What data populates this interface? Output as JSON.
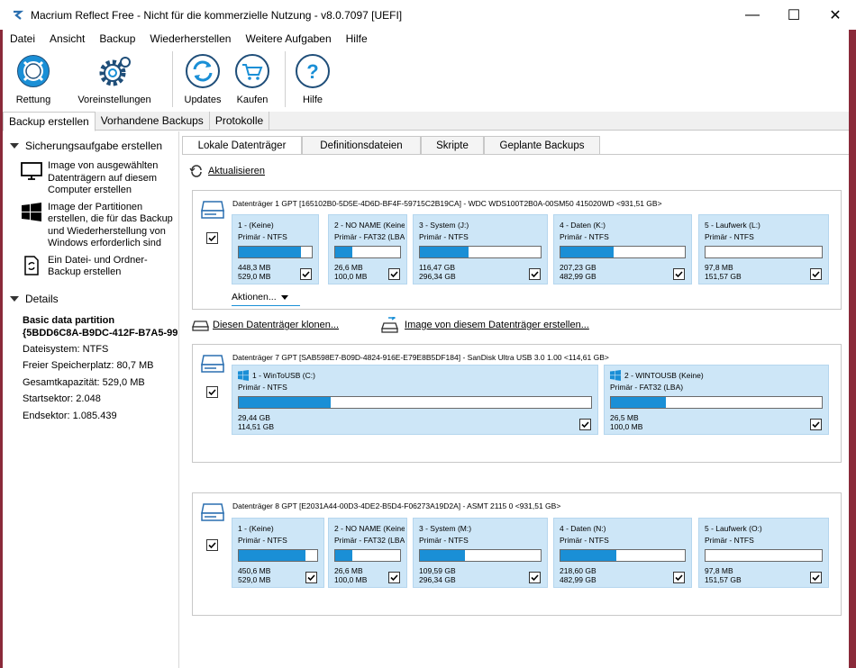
{
  "window": {
    "title": "Macrium Reflect Free - Nicht für die kommerzielle Nutzung - v8.0.7097  [UEFI]",
    "minimize": "—",
    "maximize": "☐",
    "close": "✕"
  },
  "menu": [
    "Datei",
    "Ansicht",
    "Backup",
    "Wiederherstellen",
    "Weitere Aufgaben",
    "Hilfe"
  ],
  "toolbar": {
    "rettung": "Rettung",
    "voreinstellungen": "Voreinstellungen",
    "updates": "Updates",
    "kaufen": "Kaufen",
    "hilfe": "Hilfe"
  },
  "main_tabs": [
    "Backup erstellen",
    "Vorhandene Backups",
    "Protokolle"
  ],
  "left_pane": {
    "section_tasks": "Sicherungsaufgabe erstellen",
    "task1": "Image von ausgewählten Datenträgern auf diesem Computer erstellen",
    "task2": "Image der Partitionen erstellen, die für das Backup und Wiederherstellung von Windows erforderlich sind",
    "task3": "Ein Datei- und Ordner-Backup erstellen",
    "section_details": "Details",
    "details_title1": "Basic data partition",
    "details_title2": "{5BDD6C8A-B9DC-412F-B7A5-99",
    "filesystem": "Dateisystem: NTFS",
    "free": "Freier Speicherplatz: 80,7 MB",
    "total": "Gesamtkapazität: 529,0 MB",
    "start": "Startsektor: 2.048",
    "end": "Endsektor: 1.085.439"
  },
  "sub_tabs": [
    "Lokale Datenträger",
    "Definitionsdateien",
    "Skripte",
    "Geplante Backups"
  ],
  "refresh_label": "Aktualisieren",
  "clone_label": "Diesen Datenträger klonen...",
  "image_label": "Image von diesem Datenträger erstellen...",
  "actions_label": "Aktionen...",
  "disks": [
    {
      "title": "Datenträger 1 GPT [165102B0-5D5E-4D6D-BF4F-59715C2B19CA] - WDC  WDS100T2B0A-00SM50 415020WD  <931,51 GB>",
      "partitions": [
        {
          "name": "1 -  (Keine)",
          "type": "Primär - NTFS",
          "used": "448,3 MB",
          "total": "529,0 MB",
          "fill": 0.85
        },
        {
          "name": "2 - NO NAME (Keine)",
          "type": "Primär - FAT32 (LBA)",
          "used": "26,6 MB",
          "total": "100,0 MB",
          "fill": 0.27
        },
        {
          "name": "3 - System (J:)",
          "type": "Primär - NTFS",
          "used": "116,47 GB",
          "total": "296,34 GB",
          "fill": 0.4
        },
        {
          "name": "4 - Daten (K:)",
          "type": "Primär - NTFS",
          "used": "207,23 GB",
          "total": "482,99 GB",
          "fill": 0.43
        },
        {
          "name": "5 - Laufwerk (L:)",
          "type": "Primär - NTFS",
          "used": "97,8 MB",
          "total": "151,57 GB",
          "fill": 0.0
        }
      ]
    },
    {
      "title": "Datenträger 7 GPT [SAB598E7-B09D-4824-916E-E79E8B5DF184] - SanDisk Ultra USB 3.0 1.00  <114,61 GB>",
      "partitions": [
        {
          "name": "1 - WinToUSB (C:)",
          "type": "Primär - NTFS",
          "used": "29,44 GB",
          "total": "114,51 GB",
          "fill": 0.26
        },
        {
          "name": "2 - WINTOUSB (Keine)",
          "type": "Primär - FAT32 (LBA)",
          "used": "26,5 MB",
          "total": "100,0 MB",
          "fill": 0.26
        }
      ]
    },
    {
      "title": "Datenträger 8 GPT [E2031A44-00D3-4DE2-B5D4-F06273A19D2A] - ASMT       2115              0  <931,51 GB>",
      "partitions": [
        {
          "name": "1 -  (Keine)",
          "type": "Primär - NTFS",
          "used": "450,6 MB",
          "total": "529,0 MB",
          "fill": 0.85
        },
        {
          "name": "2 - NO NAME (Keine)",
          "type": "Primär - FAT32 (LBA)",
          "used": "26,6 MB",
          "total": "100,0 MB",
          "fill": 0.27
        },
        {
          "name": "3 - System (M:)",
          "type": "Primär - NTFS",
          "used": "109,59 GB",
          "total": "296,34 GB",
          "fill": 0.37
        },
        {
          "name": "4 - Daten (N:)",
          "type": "Primär - NTFS",
          "used": "218,60 GB",
          "total": "482,99 GB",
          "fill": 0.45
        },
        {
          "name": "5 - Laufwerk (O:)",
          "type": "Primär - NTFS",
          "used": "97,8 MB",
          "total": "151,57 GB",
          "fill": 0.0
        }
      ]
    }
  ]
}
